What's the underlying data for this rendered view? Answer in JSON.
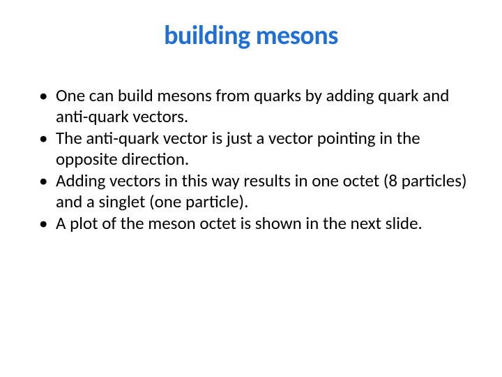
{
  "slide": {
    "title": "building mesons",
    "title_color": "#1f6fd4",
    "title_fontsize": 38,
    "body_color": "#000000",
    "body_fontsize": 25,
    "body_lineheight": 1.18,
    "background_color": "#ffffff",
    "bullets": [
      "One can build mesons from quarks by adding quark and anti-quark vectors.",
      "The anti-quark vector is just a vector pointing in the opposite direction.",
      "Adding vectors in this way results in one octet (8 particles) and a singlet (one particle).",
      "A plot of the meson octet is shown in the next slide."
    ]
  }
}
